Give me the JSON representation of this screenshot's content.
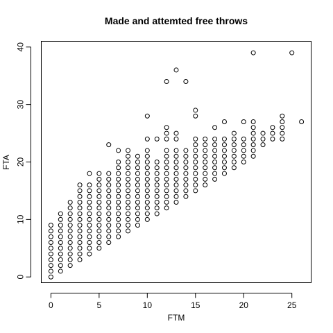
{
  "chart_data": {
    "type": "scatter",
    "title": "Made and attemted free throws",
    "xlabel": "FTM",
    "ylabel": "FTA",
    "xlim": [
      -1,
      27
    ],
    "ylim": [
      -1,
      41
    ],
    "xticks": [
      0,
      5,
      10,
      15,
      20,
      25
    ],
    "yticks": [
      0,
      10,
      20,
      30,
      40
    ],
    "grid": false,
    "points": [
      [
        0,
        0
      ],
      [
        0,
        1
      ],
      [
        0,
        2
      ],
      [
        0,
        3
      ],
      [
        0,
        4
      ],
      [
        0,
        5
      ],
      [
        0,
        6
      ],
      [
        0,
        7
      ],
      [
        0,
        8
      ],
      [
        0,
        9
      ],
      [
        1,
        1
      ],
      [
        1,
        2
      ],
      [
        1,
        3
      ],
      [
        1,
        4
      ],
      [
        1,
        5
      ],
      [
        1,
        6
      ],
      [
        1,
        7
      ],
      [
        1,
        8
      ],
      [
        1,
        9
      ],
      [
        1,
        10
      ],
      [
        1,
        11
      ],
      [
        2,
        2
      ],
      [
        2,
        3
      ],
      [
        2,
        4
      ],
      [
        2,
        5
      ],
      [
        2,
        6
      ],
      [
        2,
        7
      ],
      [
        2,
        8
      ],
      [
        2,
        9
      ],
      [
        2,
        10
      ],
      [
        2,
        11
      ],
      [
        2,
        12
      ],
      [
        2,
        13
      ],
      [
        3,
        3
      ],
      [
        3,
        4
      ],
      [
        3,
        5
      ],
      [
        3,
        6
      ],
      [
        3,
        7
      ],
      [
        3,
        8
      ],
      [
        3,
        9
      ],
      [
        3,
        10
      ],
      [
        3,
        11
      ],
      [
        3,
        12
      ],
      [
        3,
        13
      ],
      [
        3,
        14
      ],
      [
        3,
        15
      ],
      [
        3,
        16
      ],
      [
        4,
        4
      ],
      [
        4,
        5
      ],
      [
        4,
        6
      ],
      [
        4,
        7
      ],
      [
        4,
        8
      ],
      [
        4,
        9
      ],
      [
        4,
        10
      ],
      [
        4,
        11
      ],
      [
        4,
        12
      ],
      [
        4,
        13
      ],
      [
        4,
        14
      ],
      [
        4,
        15
      ],
      [
        4,
        16
      ],
      [
        4,
        18
      ],
      [
        5,
        5
      ],
      [
        5,
        6
      ],
      [
        5,
        7
      ],
      [
        5,
        8
      ],
      [
        5,
        9
      ],
      [
        5,
        10
      ],
      [
        5,
        11
      ],
      [
        5,
        12
      ],
      [
        5,
        13
      ],
      [
        5,
        14
      ],
      [
        5,
        15
      ],
      [
        5,
        16
      ],
      [
        5,
        17
      ],
      [
        5,
        18
      ],
      [
        6,
        6
      ],
      [
        6,
        7
      ],
      [
        6,
        8
      ],
      [
        6,
        9
      ],
      [
        6,
        10
      ],
      [
        6,
        11
      ],
      [
        6,
        12
      ],
      [
        6,
        13
      ],
      [
        6,
        14
      ],
      [
        6,
        15
      ],
      [
        6,
        16
      ],
      [
        6,
        17
      ],
      [
        6,
        18
      ],
      [
        6,
        23
      ],
      [
        7,
        7
      ],
      [
        7,
        8
      ],
      [
        7,
        9
      ],
      [
        7,
        10
      ],
      [
        7,
        11
      ],
      [
        7,
        12
      ],
      [
        7,
        13
      ],
      [
        7,
        14
      ],
      [
        7,
        15
      ],
      [
        7,
        16
      ],
      [
        7,
        17
      ],
      [
        7,
        18
      ],
      [
        7,
        19
      ],
      [
        7,
        20
      ],
      [
        7,
        22
      ],
      [
        8,
        8
      ],
      [
        8,
        9
      ],
      [
        8,
        10
      ],
      [
        8,
        11
      ],
      [
        8,
        12
      ],
      [
        8,
        13
      ],
      [
        8,
        14
      ],
      [
        8,
        15
      ],
      [
        8,
        16
      ],
      [
        8,
        17
      ],
      [
        8,
        18
      ],
      [
        8,
        19
      ],
      [
        8,
        20
      ],
      [
        8,
        21
      ],
      [
        8,
        22
      ],
      [
        9,
        9
      ],
      [
        9,
        10
      ],
      [
        9,
        11
      ],
      [
        9,
        12
      ],
      [
        9,
        13
      ],
      [
        9,
        14
      ],
      [
        9,
        15
      ],
      [
        9,
        16
      ],
      [
        9,
        17
      ],
      [
        9,
        18
      ],
      [
        9,
        19
      ],
      [
        9,
        20
      ],
      [
        9,
        21
      ],
      [
        10,
        10
      ],
      [
        10,
        11
      ],
      [
        10,
        12
      ],
      [
        10,
        13
      ],
      [
        10,
        14
      ],
      [
        10,
        15
      ],
      [
        10,
        16
      ],
      [
        10,
        17
      ],
      [
        10,
        18
      ],
      [
        10,
        19
      ],
      [
        10,
        20
      ],
      [
        10,
        21
      ],
      [
        10,
        22
      ],
      [
        10,
        24
      ],
      [
        10,
        28
      ],
      [
        11,
        11
      ],
      [
        11,
        12
      ],
      [
        11,
        13
      ],
      [
        11,
        14
      ],
      [
        11,
        15
      ],
      [
        11,
        16
      ],
      [
        11,
        17
      ],
      [
        11,
        18
      ],
      [
        11,
        19
      ],
      [
        11,
        20
      ],
      [
        11,
        24
      ],
      [
        12,
        12
      ],
      [
        12,
        13
      ],
      [
        12,
        14
      ],
      [
        12,
        15
      ],
      [
        12,
        16
      ],
      [
        12,
        17
      ],
      [
        12,
        18
      ],
      [
        12,
        19
      ],
      [
        12,
        20
      ],
      [
        12,
        21
      ],
      [
        12,
        22
      ],
      [
        12,
        24
      ],
      [
        12,
        25
      ],
      [
        12,
        26
      ],
      [
        12,
        34
      ],
      [
        13,
        13
      ],
      [
        13,
        14
      ],
      [
        13,
        15
      ],
      [
        13,
        16
      ],
      [
        13,
        17
      ],
      [
        13,
        18
      ],
      [
        13,
        19
      ],
      [
        13,
        20
      ],
      [
        13,
        21
      ],
      [
        13,
        22
      ],
      [
        13,
        24
      ],
      [
        13,
        25
      ],
      [
        13,
        36
      ],
      [
        14,
        14
      ],
      [
        14,
        15
      ],
      [
        14,
        16
      ],
      [
        14,
        17
      ],
      [
        14,
        18
      ],
      [
        14,
        19
      ],
      [
        14,
        20
      ],
      [
        14,
        21
      ],
      [
        14,
        22
      ],
      [
        14,
        34
      ],
      [
        15,
        15
      ],
      [
        15,
        16
      ],
      [
        15,
        17
      ],
      [
        15,
        18
      ],
      [
        15,
        19
      ],
      [
        15,
        20
      ],
      [
        15,
        21
      ],
      [
        15,
        22
      ],
      [
        15,
        23
      ],
      [
        15,
        24
      ],
      [
        15,
        28
      ],
      [
        15,
        29
      ],
      [
        16,
        16
      ],
      [
        16,
        17
      ],
      [
        16,
        18
      ],
      [
        16,
        19
      ],
      [
        16,
        20
      ],
      [
        16,
        21
      ],
      [
        16,
        22
      ],
      [
        16,
        23
      ],
      [
        16,
        24
      ],
      [
        17,
        17
      ],
      [
        17,
        18
      ],
      [
        17,
        19
      ],
      [
        17,
        20
      ],
      [
        17,
        21
      ],
      [
        17,
        22
      ],
      [
        17,
        23
      ],
      [
        17,
        24
      ],
      [
        17,
        26
      ],
      [
        18,
        18
      ],
      [
        18,
        19
      ],
      [
        18,
        20
      ],
      [
        18,
        21
      ],
      [
        18,
        22
      ],
      [
        18,
        23
      ],
      [
        18,
        24
      ],
      [
        18,
        27
      ],
      [
        19,
        19
      ],
      [
        19,
        20
      ],
      [
        19,
        21
      ],
      [
        19,
        22
      ],
      [
        19,
        23
      ],
      [
        19,
        24
      ],
      [
        19,
        25
      ],
      [
        20,
        20
      ],
      [
        20,
        21
      ],
      [
        20,
        22
      ],
      [
        20,
        23
      ],
      [
        20,
        24
      ],
      [
        20,
        27
      ],
      [
        21,
        21
      ],
      [
        21,
        22
      ],
      [
        21,
        23
      ],
      [
        21,
        24
      ],
      [
        21,
        25
      ],
      [
        21,
        26
      ],
      [
        21,
        27
      ],
      [
        21,
        39
      ],
      [
        22,
        23
      ],
      [
        22,
        24
      ],
      [
        22,
        25
      ],
      [
        23,
        24
      ],
      [
        23,
        25
      ],
      [
        23,
        26
      ],
      [
        24,
        24
      ],
      [
        24,
        25
      ],
      [
        24,
        26
      ],
      [
        24,
        27
      ],
      [
        24,
        28
      ],
      [
        25,
        39
      ],
      [
        26,
        27
      ]
    ]
  }
}
